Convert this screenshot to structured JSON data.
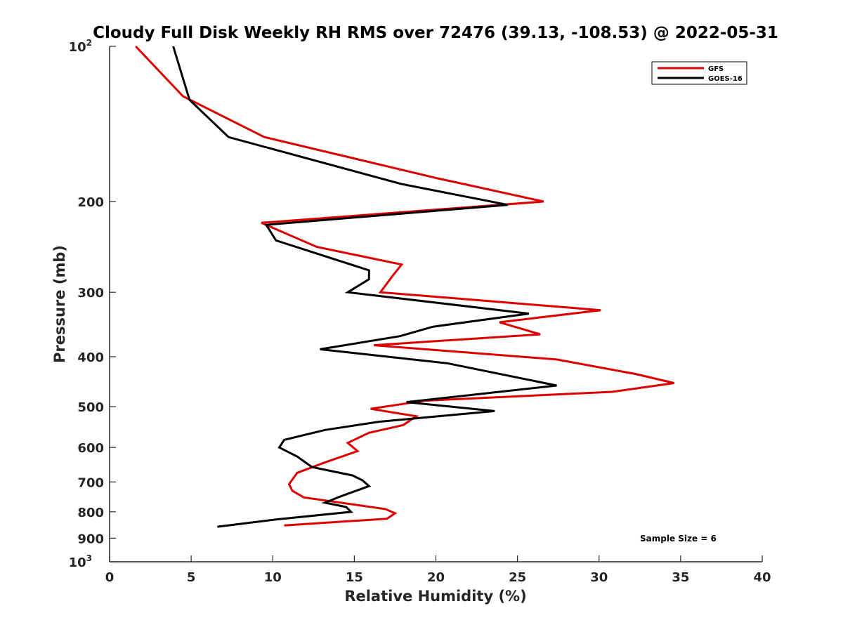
{
  "chart_data": {
    "type": "line",
    "title": "Cloudy Full Disk Weekly RH RMS over 72476 (39.13, -108.53) @ 2022-05-31",
    "xlabel": "Relative Humidity (%)",
    "ylabel": "Pressure (mb)",
    "xlim": [
      0,
      40
    ],
    "ylim": [
      100,
      1000
    ],
    "y_scale": "log",
    "y_reversed": true,
    "x_ticks": [
      0,
      5,
      10,
      15,
      20,
      25,
      30,
      35,
      40
    ],
    "y_ticks": [
      {
        "value": 100,
        "label": "10",
        "exp": "2"
      },
      {
        "value": 200,
        "label": "200"
      },
      {
        "value": 300,
        "label": "300"
      },
      {
        "value": 400,
        "label": "400"
      },
      {
        "value": 500,
        "label": "500"
      },
      {
        "value": 600,
        "label": "600"
      },
      {
        "value": 700,
        "label": "700"
      },
      {
        "value": 800,
        "label": "800"
      },
      {
        "value": 900,
        "label": "900"
      },
      {
        "value": 1000,
        "label": "10",
        "exp": "3"
      }
    ],
    "grid": false,
    "legend_position": "top-right",
    "annotation": "Sample Size = 6",
    "series": [
      {
        "name": "GFS",
        "color": "#dd0000",
        "points": [
          [
            1.6,
            100
          ],
          [
            4.5,
            125
          ],
          [
            9.5,
            150
          ],
          [
            20.0,
            180
          ],
          [
            26.6,
            200
          ],
          [
            9.3,
            220
          ],
          [
            12.7,
            245
          ],
          [
            17.9,
            265
          ],
          [
            17.3,
            280
          ],
          [
            16.6,
            300
          ],
          [
            30.1,
            325
          ],
          [
            23.9,
            343
          ],
          [
            26.4,
            362
          ],
          [
            16.2,
            380
          ],
          [
            27.4,
            405
          ],
          [
            32.2,
            432
          ],
          [
            34.6,
            450
          ],
          [
            30.8,
            468
          ],
          [
            19.3,
            487
          ],
          [
            16.0,
            505
          ],
          [
            18.8,
            522
          ],
          [
            18.0,
            543
          ],
          [
            15.9,
            562
          ],
          [
            14.6,
            588
          ],
          [
            15.2,
            610
          ],
          [
            13.3,
            640
          ],
          [
            11.5,
            672
          ],
          [
            11.0,
            707
          ],
          [
            11.2,
            728
          ],
          [
            11.9,
            750
          ],
          [
            16.9,
            790
          ],
          [
            17.5,
            805
          ],
          [
            17.0,
            825
          ],
          [
            10.7,
            850
          ]
        ]
      },
      {
        "name": "GOES-16",
        "color": "#000000",
        "points": [
          [
            3.9,
            100
          ],
          [
            4.9,
            127
          ],
          [
            7.3,
            150
          ],
          [
            17.9,
            185
          ],
          [
            24.4,
            203
          ],
          [
            9.6,
            222
          ],
          [
            10.2,
            238
          ],
          [
            15.9,
            272
          ],
          [
            15.9,
            283
          ],
          [
            14.6,
            300
          ],
          [
            25.7,
            330
          ],
          [
            19.8,
            350
          ],
          [
            17.8,
            365
          ],
          [
            12.9,
            387
          ],
          [
            20.7,
            412
          ],
          [
            27.4,
            455
          ],
          [
            18.2,
            490
          ],
          [
            23.6,
            510
          ],
          [
            16.5,
            535
          ],
          [
            13.2,
            555
          ],
          [
            10.7,
            580
          ],
          [
            10.4,
            600
          ],
          [
            11.5,
            625
          ],
          [
            12.4,
            655
          ],
          [
            14.9,
            680
          ],
          [
            15.5,
            695
          ],
          [
            15.9,
            713
          ],
          [
            14.1,
            748
          ],
          [
            13.2,
            768
          ],
          [
            14.5,
            783
          ],
          [
            14.8,
            800
          ],
          [
            10.2,
            828
          ],
          [
            6.6,
            855
          ]
        ]
      }
    ]
  }
}
